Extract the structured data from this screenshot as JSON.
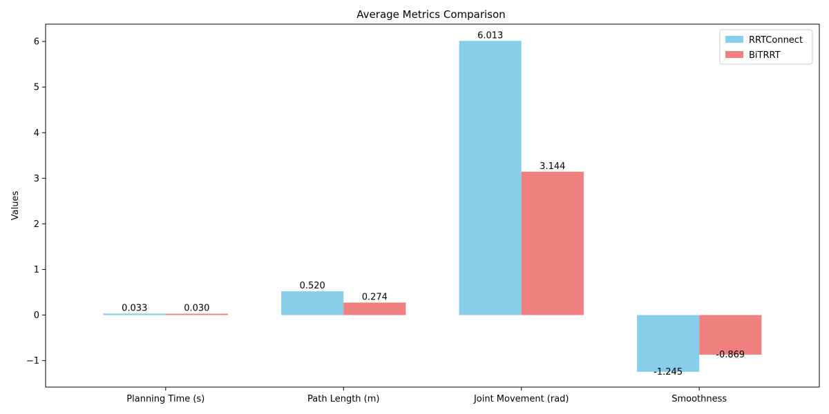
{
  "chart_data": {
    "type": "bar",
    "title": "Average Metrics Comparison",
    "xlabel": "",
    "ylabel": "Values",
    "categories": [
      "Planning Time (s)",
      "Path Length (m)",
      "Joint Movement (rad)",
      "Smoothness"
    ],
    "series": [
      {
        "name": "RRTConnect",
        "color": "#87CEEB",
        "values": [
          0.033,
          0.52,
          6.013,
          -1.245
        ],
        "labels": [
          "0.033",
          "0.520",
          "6.013",
          "-1.245"
        ]
      },
      {
        "name": "BiTRRT",
        "color": "#F08080",
        "values": [
          0.03,
          0.274,
          3.144,
          -0.869
        ],
        "labels": [
          "0.030",
          "0.274",
          "3.144",
          "-0.869"
        ]
      }
    ],
    "ylim": [
      -1.58,
      6.38
    ],
    "yticks": [
      -1,
      0,
      1,
      2,
      3,
      4,
      5,
      6
    ],
    "ytick_labels": [
      "−1",
      "0",
      "1",
      "2",
      "3",
      "4",
      "5",
      "6"
    ],
    "legend_position": "top-right",
    "grid": false
  }
}
